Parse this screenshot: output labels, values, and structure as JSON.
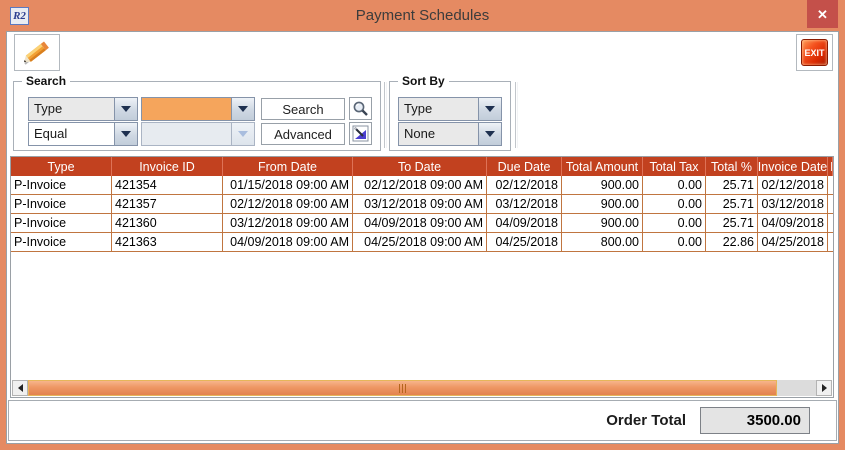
{
  "window": {
    "title": "Payment Schedules",
    "logo_text": "R2",
    "close_glyph": "✕"
  },
  "toolbar": {
    "exit_label": "EXIT"
  },
  "search": {
    "label": "Search",
    "field": "Type",
    "operator": "Equal",
    "value": "",
    "value2": "",
    "search_btn": "Search",
    "advanced_btn": "Advanced"
  },
  "sort_by": {
    "label": "Sort By",
    "primary": "Type",
    "secondary": "None"
  },
  "table": {
    "columns": [
      "Type",
      "Invoice ID",
      "From Date",
      "To Date",
      "Due Date",
      "Total Amount",
      "Total Tax",
      "Total %",
      "Invoice Date"
    ],
    "partial_column": "I",
    "rows": [
      [
        "P-Invoice",
        "421354",
        "01/15/2018 09:00 AM",
        "02/12/2018 09:00 AM",
        "02/12/2018",
        "900.00",
        "0.00",
        "25.71",
        "02/12/2018"
      ],
      [
        "P-Invoice",
        "421357",
        "02/12/2018 09:00 AM",
        "03/12/2018 09:00 AM",
        "03/12/2018",
        "900.00",
        "0.00",
        "25.71",
        "03/12/2018"
      ],
      [
        "P-Invoice",
        "421360",
        "03/12/2018 09:00 AM",
        "04/09/2018 09:00 AM",
        "04/09/2018",
        "900.00",
        "0.00",
        "25.71",
        "04/09/2018"
      ],
      [
        "P-Invoice",
        "421363",
        "04/09/2018 09:00 AM",
        "04/25/2018 09:00 AM",
        "04/25/2018",
        "800.00",
        "0.00",
        "22.86",
        "04/25/2018"
      ]
    ]
  },
  "footer": {
    "label": "Order Total",
    "value": "3500.00"
  },
  "colors": {
    "titlebar": "#e58a62",
    "table_header": "#c2411f",
    "grid_line": "#c07540",
    "value_combo": "#f5a55c",
    "close_button": "#c4504a"
  }
}
